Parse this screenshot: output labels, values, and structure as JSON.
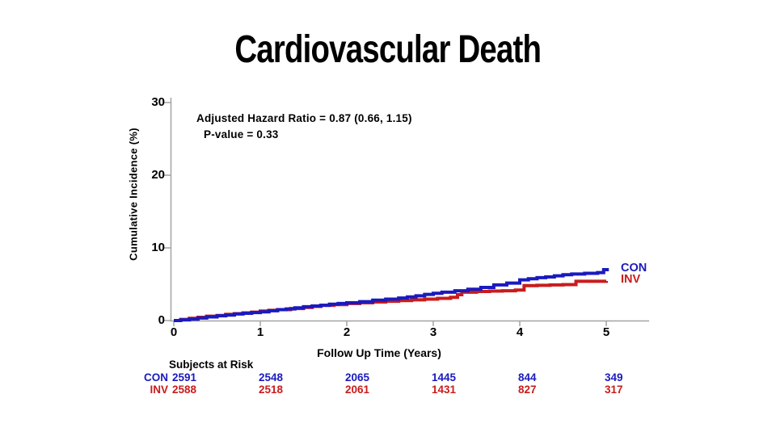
{
  "colors": {
    "blue": "#1a1abe",
    "red": "#c81c1c",
    "axis": "#a3a3a3",
    "title": "#000000",
    "background": "#ffffff"
  },
  "chart_data": {
    "type": "line",
    "title": "Cardiovascular Death",
    "xlabel": "Follow Up Time (Years)",
    "ylabel": "Cumulative Incidence (%)",
    "xlim": [
      0,
      5.5
    ],
    "ylim": [
      0,
      30
    ],
    "x_ticks": [
      0,
      1,
      2,
      3,
      4,
      5
    ],
    "y_ticks": [
      0,
      10,
      20,
      30
    ],
    "grid": false,
    "legend_position": "right-of-curve-ends",
    "annotation": {
      "line1": "Adjusted Hazard Ratio = 0.87 (0.66, 1.15)",
      "line2": "P-value = 0.33"
    },
    "series": [
      {
        "name": "CON",
        "color": "#1a1abe",
        "step": true,
        "points": [
          [
            0,
            0
          ],
          [
            0.08,
            0.1
          ],
          [
            0.18,
            0.2
          ],
          [
            0.28,
            0.35
          ],
          [
            0.38,
            0.5
          ],
          [
            0.5,
            0.65
          ],
          [
            0.6,
            0.75
          ],
          [
            0.7,
            0.9
          ],
          [
            0.8,
            1.0
          ],
          [
            0.9,
            1.1
          ],
          [
            1.0,
            1.2
          ],
          [
            1.1,
            1.35
          ],
          [
            1.2,
            1.5
          ],
          [
            1.3,
            1.6
          ],
          [
            1.4,
            1.75
          ],
          [
            1.5,
            1.9
          ],
          [
            1.6,
            2.0
          ],
          [
            1.7,
            2.1
          ],
          [
            1.8,
            2.25
          ],
          [
            1.9,
            2.35
          ],
          [
            2.0,
            2.45
          ],
          [
            2.15,
            2.6
          ],
          [
            2.3,
            2.8
          ],
          [
            2.45,
            2.95
          ],
          [
            2.6,
            3.1
          ],
          [
            2.7,
            3.25
          ],
          [
            2.8,
            3.4
          ],
          [
            2.9,
            3.6
          ],
          [
            3.0,
            3.75
          ],
          [
            3.1,
            3.9
          ],
          [
            3.25,
            4.1
          ],
          [
            3.4,
            4.3
          ],
          [
            3.55,
            4.55
          ],
          [
            3.7,
            4.9
          ],
          [
            3.85,
            5.15
          ],
          [
            4.0,
            5.6
          ],
          [
            4.1,
            5.75
          ],
          [
            4.2,
            5.9
          ],
          [
            4.3,
            6.0
          ],
          [
            4.4,
            6.15
          ],
          [
            4.5,
            6.3
          ],
          [
            4.6,
            6.4
          ],
          [
            4.75,
            6.5
          ],
          [
            4.9,
            6.6
          ],
          [
            4.97,
            7.0
          ],
          [
            5.03,
            7.0
          ]
        ]
      },
      {
        "name": "INV",
        "color": "#c81c1c",
        "step": true,
        "points": [
          [
            0,
            0
          ],
          [
            0.08,
            0.15
          ],
          [
            0.18,
            0.3
          ],
          [
            0.28,
            0.45
          ],
          [
            0.38,
            0.6
          ],
          [
            0.5,
            0.7
          ],
          [
            0.6,
            0.85
          ],
          [
            0.7,
            0.95
          ],
          [
            0.8,
            1.05
          ],
          [
            0.9,
            1.15
          ],
          [
            1.0,
            1.3
          ],
          [
            1.1,
            1.4
          ],
          [
            1.2,
            1.5
          ],
          [
            1.35,
            1.65
          ],
          [
            1.5,
            1.8
          ],
          [
            1.6,
            1.95
          ],
          [
            1.7,
            2.1
          ],
          [
            1.85,
            2.2
          ],
          [
            2.0,
            2.35
          ],
          [
            2.15,
            2.45
          ],
          [
            2.3,
            2.55
          ],
          [
            2.45,
            2.65
          ],
          [
            2.6,
            2.75
          ],
          [
            2.75,
            2.85
          ],
          [
            2.9,
            2.95
          ],
          [
            3.05,
            3.05
          ],
          [
            3.2,
            3.2
          ],
          [
            3.28,
            3.55
          ],
          [
            3.33,
            3.9
          ],
          [
            3.5,
            4.0
          ],
          [
            3.65,
            4.05
          ],
          [
            3.8,
            4.1
          ],
          [
            3.95,
            4.2
          ],
          [
            4.05,
            4.8
          ],
          [
            4.2,
            4.85
          ],
          [
            4.35,
            4.9
          ],
          [
            4.5,
            4.95
          ],
          [
            4.65,
            5.4
          ],
          [
            5.0,
            5.45
          ]
        ]
      }
    ],
    "subjects_at_risk": {
      "label": "Subjects at Risk",
      "rows": [
        {
          "name": "CON",
          "color": "#1a1abe",
          "values": [
            2591,
            2548,
            2065,
            1445,
            844,
            349
          ]
        },
        {
          "name": "INV",
          "color": "#c81c1c",
          "values": [
            2588,
            2518,
            2061,
            1431,
            827,
            317
          ]
        }
      ]
    }
  }
}
